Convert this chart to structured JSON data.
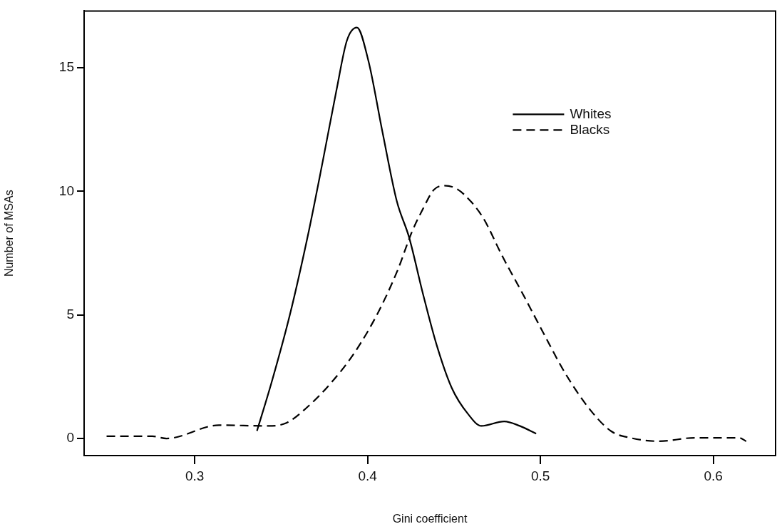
{
  "chart_data": {
    "type": "line",
    "xlabel": "Gini coefficient",
    "ylabel": "Number of MSAs",
    "xlim": [
      0.236,
      0.636
    ],
    "ylim": [
      -0.69,
      17.3
    ],
    "xticks": [
      0.3,
      0.4,
      0.5,
      0.6
    ],
    "yticks": [
      0,
      5,
      10,
      15
    ],
    "grid": false,
    "legend": "top right",
    "marker": "none",
    "series": [
      {
        "name": "Whites",
        "color": "#000000",
        "line_style": "solid",
        "x": [
          0.336,
          0.3444,
          0.355,
          0.366,
          0.374,
          0.382,
          0.388,
          0.3938,
          0.4004,
          0.4086,
          0.4169,
          0.424,
          0.432,
          0.44,
          0.4486,
          0.458,
          0.4658,
          0.479,
          0.488,
          0.4975
        ],
        "values": [
          0.31,
          2.26,
          5.0,
          8.4,
          11.2,
          14.1,
          16.1,
          16.63,
          15.3,
          12.4,
          9.6,
          8.14,
          5.86,
          3.77,
          2.06,
          1.0,
          0.51,
          0.69,
          0.51,
          0.2
        ]
      },
      {
        "name": "Blacks",
        "color": "#000000",
        "line_style": "dashed",
        "x": [
          0.249,
          0.2755,
          0.2837,
          0.314,
          0.3424,
          0.353,
          0.364,
          0.3786,
          0.3926,
          0.406,
          0.4173,
          0.4255,
          0.432,
          0.4383,
          0.4444,
          0.4519,
          0.46,
          0.467,
          0.478,
          0.4897,
          0.502,
          0.5144,
          0.529,
          0.541,
          0.5519,
          0.5687,
          0.5893,
          0.6148,
          0.619
        ],
        "values": [
          0.09,
          0.09,
          0,
          0.54,
          0.51,
          0.63,
          1.2,
          2.23,
          3.49,
          5.09,
          6.8,
          8.34,
          9.29,
          10.06,
          10.23,
          10.09,
          9.57,
          8.91,
          7.37,
          5.86,
          4.23,
          2.63,
          1.14,
          0.29,
          0.03,
          -0.11,
          0.03,
          0.03,
          -0.11
        ]
      }
    ]
  }
}
